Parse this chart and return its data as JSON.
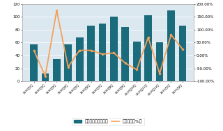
{
  "categories": [
    "2020年1月",
    "2020年2月",
    "2020年3月",
    "2020年4月",
    "2020年5月",
    "2020年6月",
    "2020年7月",
    "2020年8月",
    "2020年9月",
    "2020年10月",
    "2020年11月",
    "2020年12月",
    "2021年1月",
    "2021年2月"
  ],
  "sales": [
    57,
    12,
    35,
    57,
    68,
    86,
    89,
    100,
    84,
    62,
    102,
    60,
    110,
    86
  ],
  "growth": [
    20,
    -80,
    175,
    -45,
    20,
    20,
    5,
    10,
    -30,
    -55,
    70,
    -70,
    80,
    25
  ],
  "bar_color": "#1a6b7c",
  "line_color": "#f5a05a",
  "bg_color": "#dce8f0",
  "ylim_left": [
    0,
    120
  ],
  "ylim_right": [
    -100,
    200
  ],
  "yticks_left": [
    0,
    20,
    40,
    60,
    80,
    100,
    120
  ],
  "yticks_right": [
    -100,
    -50,
    0,
    50,
    100,
    150,
    200
  ],
  "ytick_labels_right": [
    "-100.00%",
    "-50.00%",
    "0.00%",
    "50.00%",
    "100.00%",
    "150.00%",
    "200.00%"
  ],
  "legend1": "总销售额（百万元）",
  "legend2": "环比增长（%）",
  "figsize": [
    3.2,
    1.89
  ],
  "dpi": 100
}
